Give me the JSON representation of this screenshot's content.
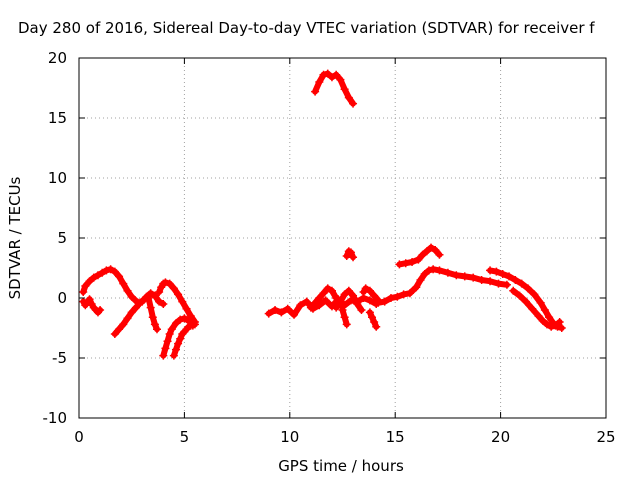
{
  "chart_data": {
    "type": "scatter",
    "title": "Day 280 of 2016, Sidereal Day-to-day VTEC variation (SDTVAR) for receiver f",
    "xlabel": "GPS time / hours",
    "ylabel": "SDTVAR / TECUs",
    "xlim": [
      0,
      25
    ],
    "ylim": [
      -10,
      20
    ],
    "x_ticks": [
      0,
      5,
      10,
      15,
      20,
      25
    ],
    "y_ticks": [
      -10,
      -5,
      0,
      5,
      10,
      15,
      20
    ],
    "x_tick_labels": [
      "0",
      "5",
      "10",
      "15",
      "20",
      "25"
    ],
    "y_tick_labels": [
      "-10",
      "-5",
      "0",
      "5",
      "10",
      "15",
      "20"
    ],
    "grid": true,
    "marker": "+",
    "color": "#ff0000",
    "series": [
      {
        "x": [
          0.2,
          0.3,
          0.5,
          0.7,
          0.9,
          1.1,
          1.3,
          1.5,
          1.7,
          1.9,
          2.1,
          2.3,
          2.5,
          2.8,
          3.0,
          3.2,
          3.4,
          3.6,
          3.8,
          4.0
        ],
        "y": [
          0.5,
          1.0,
          1.4,
          1.7,
          1.9,
          2.1,
          2.3,
          2.4,
          2.2,
          1.8,
          1.2,
          0.6,
          0.1,
          -0.4,
          -0.3,
          0.1,
          0.4,
          0.2,
          -0.3,
          -0.5
        ]
      },
      {
        "x": [
          0.2,
          0.3,
          0.4,
          0.5,
          0.6,
          0.7,
          0.8,
          0.9,
          1.0
        ],
        "y": [
          -0.3,
          -0.6,
          -0.3,
          -0.1,
          -0.5,
          -0.8,
          -1.0,
          -1.2,
          -1.0
        ]
      },
      {
        "x": [
          1.7,
          1.9,
          2.1,
          2.3,
          2.5,
          2.7,
          2.9,
          3.1,
          3.3
        ],
        "y": [
          -3.0,
          -2.6,
          -2.2,
          -1.7,
          -1.2,
          -0.8,
          -0.4,
          -0.1,
          0.2
        ]
      },
      {
        "x": [
          3.3,
          3.4,
          3.5,
          3.6,
          3.7
        ],
        "y": [
          0.0,
          -0.8,
          -1.6,
          -2.2,
          -2.6
        ]
      },
      {
        "x": [
          3.8,
          3.9,
          4.0,
          4.1,
          4.3,
          4.5,
          4.7,
          4.9,
          5.1,
          5.3,
          5.5
        ],
        "y": [
          0.5,
          0.9,
          1.2,
          1.3,
          1.2,
          0.8,
          0.3,
          -0.3,
          -0.9,
          -1.5,
          -2.0
        ]
      },
      {
        "x": [
          4.0,
          4.1,
          4.2,
          4.3,
          4.4,
          4.6,
          4.8,
          5.0,
          5.2,
          5.4
        ],
        "y": [
          -4.8,
          -4.2,
          -3.6,
          -3.0,
          -2.6,
          -2.1,
          -1.8,
          -1.7,
          -1.9,
          -2.3
        ]
      },
      {
        "x": [
          4.5,
          4.6,
          4.7,
          4.8,
          4.9,
          5.0,
          5.1,
          5.2,
          5.3,
          5.4,
          5.5
        ],
        "y": [
          -4.8,
          -4.3,
          -3.8,
          -3.4,
          -3.0,
          -2.8,
          -2.6,
          -2.4,
          -2.3,
          -2.2,
          -2.2
        ]
      },
      {
        "x": [
          9.0,
          9.3,
          9.6,
          9.9,
          10.2,
          10.5,
          10.8,
          11.1,
          11.4,
          11.7,
          12.0,
          12.3,
          12.6,
          12.9,
          13.2,
          13.5,
          13.8,
          14.1
        ],
        "y": [
          -1.3,
          -1.0,
          -1.2,
          -0.9,
          -1.4,
          -0.6,
          -0.3,
          -0.9,
          -0.6,
          -0.2,
          -0.7,
          -0.1,
          -0.6,
          -0.2,
          -0.3,
          0.0,
          -0.2,
          -0.5
        ]
      },
      {
        "x": [
          11.0,
          11.2,
          11.4,
          11.6,
          11.8,
          12.0,
          12.2,
          12.4
        ],
        "y": [
          -0.8,
          -0.4,
          0.0,
          0.4,
          0.8,
          0.6,
          0.0,
          -0.6
        ]
      },
      {
        "x": [
          12.2,
          12.4,
          12.6,
          12.8,
          13.0,
          13.2,
          13.4
        ],
        "y": [
          -0.8,
          -0.3,
          0.3,
          0.6,
          0.2,
          -0.5,
          -1.0
        ]
      },
      {
        "x": [
          12.5,
          12.6,
          12.7
        ],
        "y": [
          -1.0,
          -1.6,
          -2.2
        ]
      },
      {
        "x": [
          13.5,
          13.6,
          13.8,
          14.0,
          14.2
        ],
        "y": [
          0.5,
          0.8,
          0.6,
          0.2,
          -0.2
        ]
      },
      {
        "x": [
          13.8,
          13.9,
          14.0,
          14.1
        ],
        "y": [
          -1.2,
          -1.6,
          -2.0,
          -2.4
        ]
      },
      {
        "x": [
          11.2,
          11.4,
          11.6,
          11.8,
          12.0,
          12.2,
          12.4,
          12.6,
          12.8,
          13.0
        ],
        "y": [
          17.2,
          18.0,
          18.6,
          18.7,
          18.4,
          18.6,
          18.2,
          17.4,
          16.7,
          16.2
        ]
      },
      {
        "x": [
          12.7,
          12.8,
          12.9,
          13.0
        ],
        "y": [
          3.5,
          3.9,
          3.8,
          3.4
        ]
      },
      {
        "x": [
          14.2,
          14.5,
          14.8,
          15.1,
          15.4,
          15.7,
          16.0,
          16.2,
          16.4,
          16.6,
          16.8,
          17.1,
          17.5,
          17.9,
          18.3,
          18.7,
          19.1,
          19.5,
          19.9,
          20.3
        ],
        "y": [
          -0.4,
          -0.3,
          0.0,
          0.1,
          0.3,
          0.4,
          0.9,
          1.5,
          2.0,
          2.3,
          2.4,
          2.3,
          2.1,
          1.9,
          1.8,
          1.7,
          1.5,
          1.4,
          1.2,
          1.1
        ]
      },
      {
        "x": [
          15.2,
          15.5,
          15.8,
          16.1,
          16.3,
          16.5,
          16.7,
          16.9,
          17.1
        ],
        "y": [
          2.8,
          2.9,
          3.0,
          3.2,
          3.6,
          3.9,
          4.2,
          4.0,
          3.6
        ]
      },
      {
        "x": [
          19.5,
          19.8,
          20.1,
          20.4,
          20.7,
          21.0,
          21.3,
          21.6,
          21.9,
          22.1,
          22.3,
          22.5,
          22.7,
          22.9
        ],
        "y": [
          2.3,
          2.2,
          2.0,
          1.8,
          1.5,
          1.2,
          0.8,
          0.3,
          -0.4,
          -1.0,
          -1.6,
          -2.1,
          -2.4,
          -2.5
        ]
      },
      {
        "x": [
          20.6,
          20.9,
          21.2,
          21.5,
          21.8,
          22.0,
          22.2,
          22.4,
          22.6,
          22.8
        ],
        "y": [
          0.6,
          0.2,
          -0.3,
          -0.9,
          -1.5,
          -1.9,
          -2.2,
          -2.4,
          -2.3,
          -2.0
        ]
      }
    ]
  }
}
